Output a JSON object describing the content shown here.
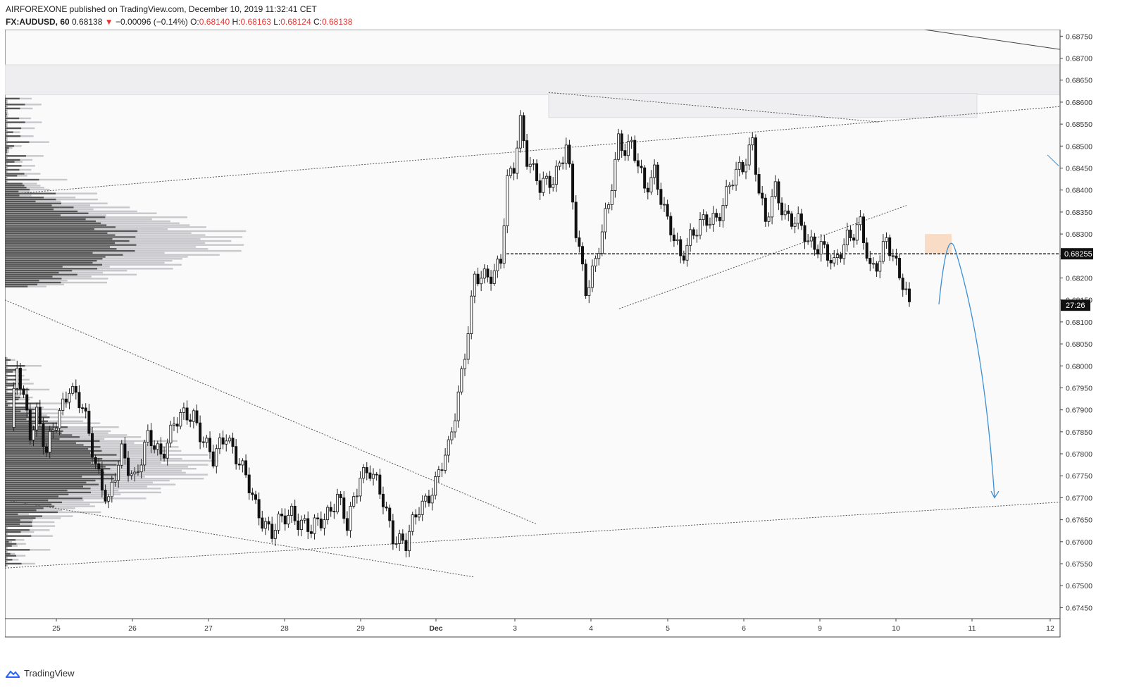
{
  "header": {
    "publisher_line": "AIRFOREXONE published on TradingView.com, December 10, 2019 11:32:41 CET",
    "symbol": "FX:AUDUSD, 60",
    "last": "0.68138",
    "change_arrow": "▼",
    "change": "−0.00096 (−0.14%)",
    "open_label": "O:",
    "open": "0.68140",
    "high_label": "H:",
    "high": "0.68163",
    "low_label": "L:",
    "low": "0.68124",
    "close_label": "C:",
    "close": "0.68138"
  },
  "footer": {
    "brand": "TradingView"
  },
  "colors": {
    "up": "#333333",
    "down": "#111111",
    "accent": "#e53935",
    "projection": "#3a8fd6",
    "zone": "#f7ccaa"
  },
  "chart_data": {
    "type": "candlestick",
    "y_range": [
      0.67425,
      0.68765
    ],
    "y_ticks": [
      "0.68750",
      "0.68700",
      "0.68650",
      "0.68600",
      "0.68550",
      "0.68500",
      "0.68450",
      "0.68400",
      "0.68350",
      "0.68300",
      "0.68250",
      "0.68200",
      "0.68150",
      "0.68100",
      "0.68050",
      "0.68000",
      "0.67950",
      "0.67900",
      "0.67850",
      "0.67800",
      "0.67750",
      "0.67700",
      "0.67650",
      "0.67600",
      "0.67550",
      "0.67500",
      "0.67450"
    ],
    "x_labels": [
      "25",
      "26",
      "27",
      "28",
      "29",
      "Dec",
      "3",
      "4",
      "5",
      "6",
      "9",
      "10",
      "11",
      "12"
    ],
    "price_label": "0.68255",
    "countdown_label": "27:26",
    "keyframes": [
      [
        0,
        0.6786
      ],
      [
        2,
        0.6799
      ],
      [
        6,
        0.6785
      ],
      [
        8,
        0.679
      ],
      [
        11,
        0.678
      ],
      [
        14,
        0.6787
      ],
      [
        18,
        0.6796
      ],
      [
        22,
        0.679
      ],
      [
        26,
        0.6778
      ],
      [
        30,
        0.6769
      ],
      [
        34,
        0.678
      ],
      [
        38,
        0.6775
      ],
      [
        42,
        0.6783
      ],
      [
        46,
        0.678
      ],
      [
        50,
        0.6787
      ],
      [
        56,
        0.6789
      ],
      [
        62,
        0.6778
      ],
      [
        66,
        0.6785
      ],
      [
        70,
        0.6778
      ],
      [
        75,
        0.6768
      ],
      [
        80,
        0.6762
      ],
      [
        86,
        0.6767
      ],
      [
        92,
        0.6762
      ],
      [
        96,
        0.6766
      ],
      [
        100,
        0.677
      ],
      [
        103,
        0.6763
      ],
      [
        107,
        0.6776
      ],
      [
        110,
        0.6776
      ],
      [
        114,
        0.6769
      ],
      [
        117,
        0.6762
      ],
      [
        121,
        0.6759
      ],
      [
        125,
        0.6768
      ],
      [
        130,
        0.6773
      ],
      [
        134,
        0.6781
      ],
      [
        136,
        0.679
      ],
      [
        139,
        0.6803
      ],
      [
        142,
        0.6819
      ],
      [
        146,
        0.6821
      ],
      [
        148,
        0.6822
      ],
      [
        150,
        0.6824
      ],
      [
        152,
        0.6841
      ],
      [
        154,
        0.6845
      ],
      [
        156,
        0.6856
      ],
      [
        158,
        0.6848
      ],
      [
        162,
        0.684
      ],
      [
        166,
        0.6843
      ],
      [
        170,
        0.685
      ],
      [
        173,
        0.683
      ],
      [
        176,
        0.6818
      ],
      [
        179,
        0.6824
      ],
      [
        183,
        0.6836
      ],
      [
        186,
        0.6852
      ],
      [
        188,
        0.685
      ],
      [
        190,
        0.685
      ],
      [
        194,
        0.684
      ],
      [
        197,
        0.6845
      ],
      [
        201,
        0.6832
      ],
      [
        205,
        0.6825
      ],
      [
        208,
        0.683
      ],
      [
        212,
        0.6832
      ],
      [
        216,
        0.6834
      ],
      [
        220,
        0.6841
      ],
      [
        224,
        0.6845
      ],
      [
        227,
        0.6852
      ],
      [
        229,
        0.684
      ],
      [
        231,
        0.6832
      ],
      [
        234,
        0.684
      ],
      [
        237,
        0.6835
      ],
      [
        241,
        0.6832
      ],
      [
        244,
        0.6828
      ],
      [
        248,
        0.6828
      ],
      [
        252,
        0.6822
      ],
      [
        256,
        0.683
      ],
      [
        260,
        0.6832
      ],
      [
        263,
        0.6821
      ],
      [
        266,
        0.6825
      ],
      [
        268,
        0.683
      ],
      [
        270,
        0.6824
      ],
      [
        272,
        0.682
      ],
      [
        274,
        0.6816
      ],
      [
        275,
        0.6814
      ]
    ]
  }
}
